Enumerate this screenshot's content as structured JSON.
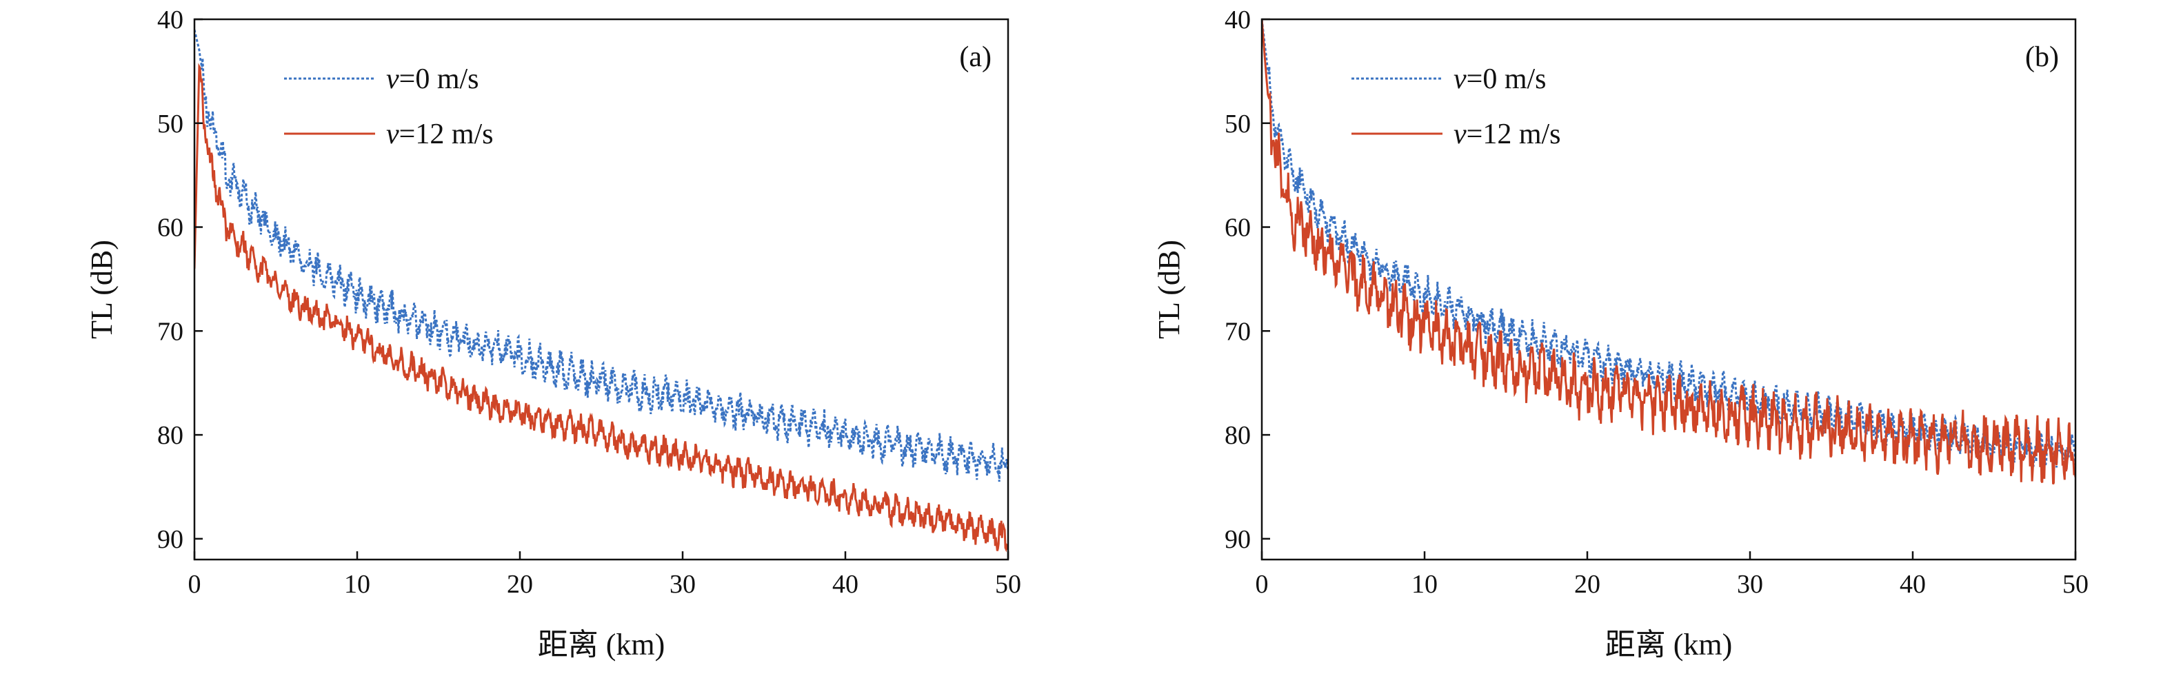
{
  "colors": {
    "blue": "#3a73c2",
    "red": "#cf4527",
    "axis": "#111111"
  },
  "chart_data": [
    {
      "type": "line",
      "panel_label": "(a)",
      "xlabel": "距离 (km)",
      "ylabel": "TL (dB)",
      "xlim": [
        0,
        50
      ],
      "ylim": [
        40,
        92
      ],
      "y_inverted": true,
      "xticks": [
        0,
        10,
        20,
        30,
        40,
        50
      ],
      "yticks": [
        40,
        50,
        60,
        70,
        80,
        90
      ],
      "legend_position": "top-left",
      "series": [
        {
          "name": "v=0 m/s",
          "name_italic": "v",
          "name_rest": "=0 m/s",
          "style": "dotted",
          "color": "#3a73c2",
          "x": [
            0,
            0.3,
            0.6,
            1,
            1.5,
            2,
            3,
            4,
            5,
            6,
            7,
            8,
            9,
            10,
            12,
            14,
            16,
            18,
            20,
            22,
            24,
            26,
            28,
            30,
            32,
            34,
            36,
            38,
            40,
            42,
            44,
            46,
            48,
            50
          ],
          "y": [
            41,
            43,
            47,
            50,
            52,
            55,
            57,
            59,
            61,
            62,
            63.5,
            64.5,
            65.5,
            66.5,
            68,
            69.5,
            70.5,
            71.5,
            72.5,
            73.5,
            74.5,
            75.3,
            76,
            76.5,
            77.3,
            78,
            78.7,
            79.3,
            80,
            80.7,
            81.3,
            81.9,
            82.5,
            83
          ]
        },
        {
          "name": "v=12 m/s",
          "name_italic": "v",
          "name_rest": "=12 m/s",
          "style": "solid",
          "color": "#cf4527",
          "x": [
            0,
            0.3,
            0.6,
            1,
            1.5,
            2,
            3,
            4,
            5,
            6,
            7,
            8,
            9,
            10,
            12,
            14,
            16,
            18,
            20,
            22,
            24,
            26,
            28,
            30,
            32,
            34,
            36,
            38,
            40,
            42,
            44,
            46,
            48,
            50
          ],
          "y": [
            64,
            44,
            50,
            54,
            57,
            60,
            62,
            64,
            65.5,
            67,
            68,
            68.8,
            69.5,
            70.5,
            72.5,
            74,
            75.5,
            77,
            78,
            78.8,
            79.5,
            80.5,
            81.3,
            82,
            83,
            83.8,
            84.6,
            85.3,
            86,
            86.8,
            87.5,
            88.2,
            89,
            90
          ]
        }
      ]
    },
    {
      "type": "line",
      "panel_label": "(b)",
      "xlabel": "距离 (km)",
      "ylabel": "TL (dB)",
      "xlim": [
        0,
        50
      ],
      "ylim": [
        40,
        92
      ],
      "y_inverted": true,
      "xticks": [
        0,
        10,
        20,
        30,
        40,
        50
      ],
      "yticks": [
        40,
        50,
        60,
        70,
        80,
        90
      ],
      "legend_position": "top-left",
      "series": [
        {
          "name": "v=0 m/s",
          "name_italic": "v",
          "name_rest": "=0 m/s",
          "style": "dotted",
          "color": "#3a73c2",
          "x": [
            0,
            0.3,
            0.6,
            1,
            1.5,
            2,
            3,
            4,
            5,
            6,
            7,
            8,
            9,
            10,
            12,
            14,
            16,
            18,
            20,
            22,
            24,
            26,
            28,
            30,
            32,
            34,
            36,
            38,
            40,
            42,
            44,
            46,
            48,
            50
          ],
          "y": [
            40,
            44,
            48,
            51,
            53,
            55,
            57.5,
            59.5,
            61,
            62.5,
            63.5,
            64.5,
            65.5,
            66.5,
            68,
            69.5,
            70.5,
            71.5,
            72.5,
            73.5,
            74.3,
            75,
            75.8,
            76.5,
            77.2,
            77.8,
            78.4,
            79,
            79.5,
            80,
            80.5,
            81,
            81.3,
            81.6
          ]
        },
        {
          "name": "v=12 m/s",
          "name_italic": "v",
          "name_rest": "=12 m/s",
          "style": "solid",
          "color": "#cf4527",
          "x": [
            0,
            0.3,
            0.6,
            1,
            1.5,
            2,
            3,
            4,
            5,
            6,
            7,
            8,
            9,
            10,
            12,
            14,
            16,
            18,
            20,
            22,
            24,
            26,
            28,
            30,
            32,
            34,
            36,
            38,
            40,
            42,
            44,
            46,
            48,
            50
          ],
          "y": [
            40,
            46,
            51,
            54,
            57,
            59,
            61,
            62.5,
            64,
            65.5,
            66.5,
            67.5,
            68.5,
            69.5,
            71,
            72.5,
            73.5,
            74.5,
            75.5,
            76,
            76.7,
            77.3,
            77.8,
            78.3,
            78.8,
            79.2,
            79.6,
            80,
            80.3,
            80.6,
            80.9,
            81.2,
            81.5,
            81.8
          ]
        }
      ]
    }
  ]
}
